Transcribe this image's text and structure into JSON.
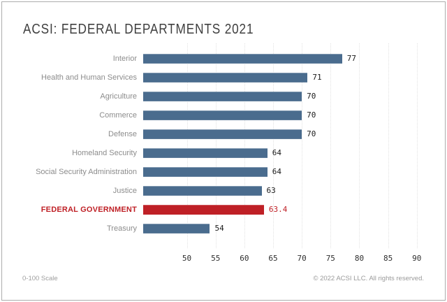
{
  "title": "ACSI: FEDERAL DEPARTMENTS 2021",
  "footer": {
    "scale_note": "0-100 Scale",
    "copyright": "© 2022 ACSI LLC. All rights reserved."
  },
  "colors": {
    "bar_blue": "#4a6c8e",
    "highlight_red": "#bf2026",
    "category_label_gray": "#8c8c8c",
    "gridline_gray": "#e2e2e2",
    "frame_border_gray": "#acacac"
  },
  "chart_data": {
    "type": "bar",
    "orientation": "horizontal",
    "title": "ACSI: FEDERAL DEPARTMENTS 2021",
    "categories": [
      "Interior",
      "Health and Human Services",
      "Agriculture",
      "Commerce",
      "Defense",
      "Homeland Security",
      "Social Security Administration",
      "Justice",
      "FEDERAL GOVERNMENT",
      "Treasury"
    ],
    "values": [
      77,
      71,
      70,
      70,
      70,
      64,
      64,
      63,
      63.4,
      54
    ],
    "value_labels": [
      "77",
      "71",
      "70",
      "70",
      "70",
      "64",
      "64",
      "63",
      "63.4",
      "54"
    ],
    "highlight_index": 8,
    "highlight_category": "FEDERAL GOVERNMENT",
    "x_ticks": [
      50,
      55,
      60,
      65,
      70,
      75,
      80,
      85,
      90
    ],
    "xlim": [
      42.4,
      91
    ],
    "xlabel": "",
    "ylabel": "",
    "grid": "dotted-vertical",
    "legend": "none"
  }
}
